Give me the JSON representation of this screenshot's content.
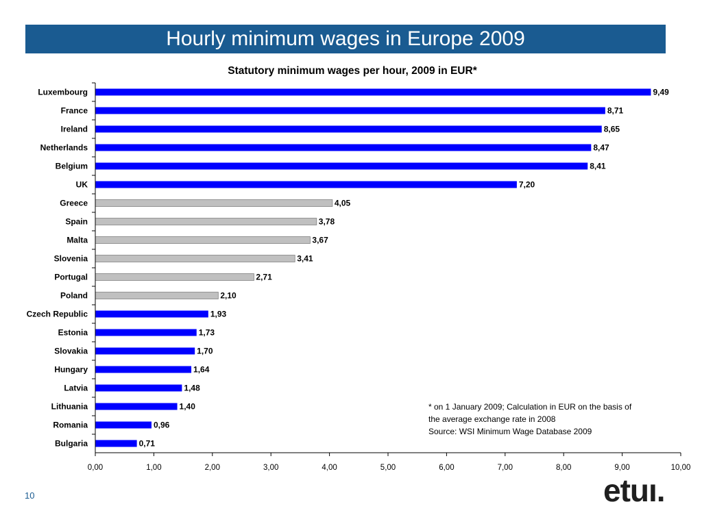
{
  "slide": {
    "title": "Hourly minimum wages in Europe 2009",
    "page_number": "10",
    "logo_text": "etuı."
  },
  "footnote": {
    "lines": [
      "* on 1 January 2009; Calculation in EUR on the basis of",
      "the average exchange rate in 2008",
      "Source: WSI Minimum Wage Database 2009"
    ]
  },
  "colors": {
    "banner": "#1a5b91",
    "highlight_bar": "#0000ff",
    "other_bar": "#c0c0c0"
  },
  "chart_data": {
    "type": "bar",
    "orientation": "horizontal",
    "title": "Statutory minimum wages per hour, 2009 in EUR*",
    "categories": [
      "Luxembourg",
      "France",
      "Ireland",
      "Netherlands",
      "Belgium",
      "UK",
      "Greece",
      "Spain",
      "Malta",
      "Slovenia",
      "Portugal",
      "Poland",
      "Czech Republic",
      "Estonia",
      "Slovakia",
      "Hungary",
      "Latvia",
      "Lithuania",
      "Romania",
      "Bulgaria"
    ],
    "values": [
      9.49,
      8.71,
      8.65,
      8.47,
      8.41,
      7.2,
      4.05,
      3.78,
      3.67,
      3.41,
      2.71,
      2.1,
      1.93,
      1.73,
      1.7,
      1.64,
      1.48,
      1.4,
      0.96,
      0.71
    ],
    "value_labels": [
      "9,49",
      "8,71",
      "8,65",
      "8,47",
      "8,41",
      "7,20",
      "4,05",
      "3,78",
      "3,67",
      "3,41",
      "2,71",
      "2,10",
      "1,93",
      "1,73",
      "1,70",
      "1,64",
      "1,48",
      "1,40",
      "0,96",
      "0,71"
    ],
    "bar_colors": [
      "blue",
      "blue",
      "blue",
      "blue",
      "blue",
      "blue",
      "grey",
      "grey",
      "grey",
      "grey",
      "grey",
      "grey",
      "blue",
      "blue",
      "blue",
      "blue",
      "blue",
      "blue",
      "blue",
      "blue"
    ],
    "xlim": [
      0,
      10
    ],
    "x_ticks": [
      "0,00",
      "1,00",
      "2,00",
      "3,00",
      "4,00",
      "5,00",
      "6,00",
      "7,00",
      "8,00",
      "9,00",
      "10,00"
    ],
    "xlabel": "",
    "ylabel": "",
    "grid": false,
    "legend": "none"
  }
}
